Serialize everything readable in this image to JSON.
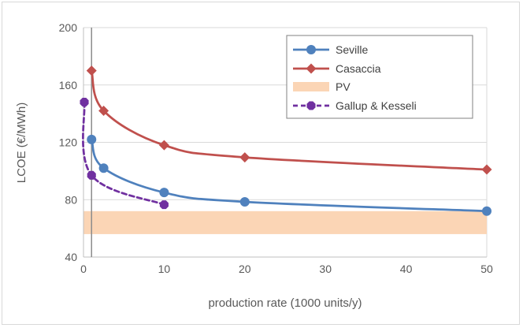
{
  "chart_data": {
    "type": "line",
    "title": "",
    "xlabel": "production rate (1000 units/y)",
    "ylabel": "LCOE (€/MWh)",
    "xlim": [
      0,
      50
    ],
    "ylim": [
      40,
      200
    ],
    "x_ticks": [
      "0",
      "10",
      "20",
      "30",
      "40",
      "50"
    ],
    "y_ticks": [
      "40",
      "80",
      "120",
      "160",
      "200"
    ],
    "grid": "horizontal",
    "legend_position": "top-right",
    "reference_line_x": 1,
    "series": [
      {
        "name": "Seville",
        "color": "#4f81bd",
        "style": "solid",
        "marker": "circle",
        "points": [
          [
            1,
            122
          ],
          [
            2.5,
            102
          ],
          [
            10,
            85
          ],
          [
            20,
            78.5
          ],
          [
            50,
            72
          ]
        ]
      },
      {
        "name": "Casaccia",
        "color": "#c0504d",
        "style": "solid",
        "marker": "diamond",
        "points": [
          [
            1,
            170
          ],
          [
            2.5,
            142
          ],
          [
            10,
            118
          ],
          [
            20,
            109.5
          ],
          [
            50,
            101
          ]
        ]
      },
      {
        "name": "Gallup & Kesseli",
        "color": "#7030a0",
        "style": "dashed",
        "marker": "octagon",
        "points": [
          [
            0.1,
            148
          ],
          [
            1,
            97
          ],
          [
            10,
            76.5
          ]
        ]
      }
    ],
    "bands": [
      {
        "name": "PV",
        "color": "#fbd5b5",
        "y_range": [
          56,
          72
        ]
      }
    ],
    "legend": [
      "Seville",
      "Casaccia",
      "PV",
      "Gallup & Kesseli"
    ]
  }
}
